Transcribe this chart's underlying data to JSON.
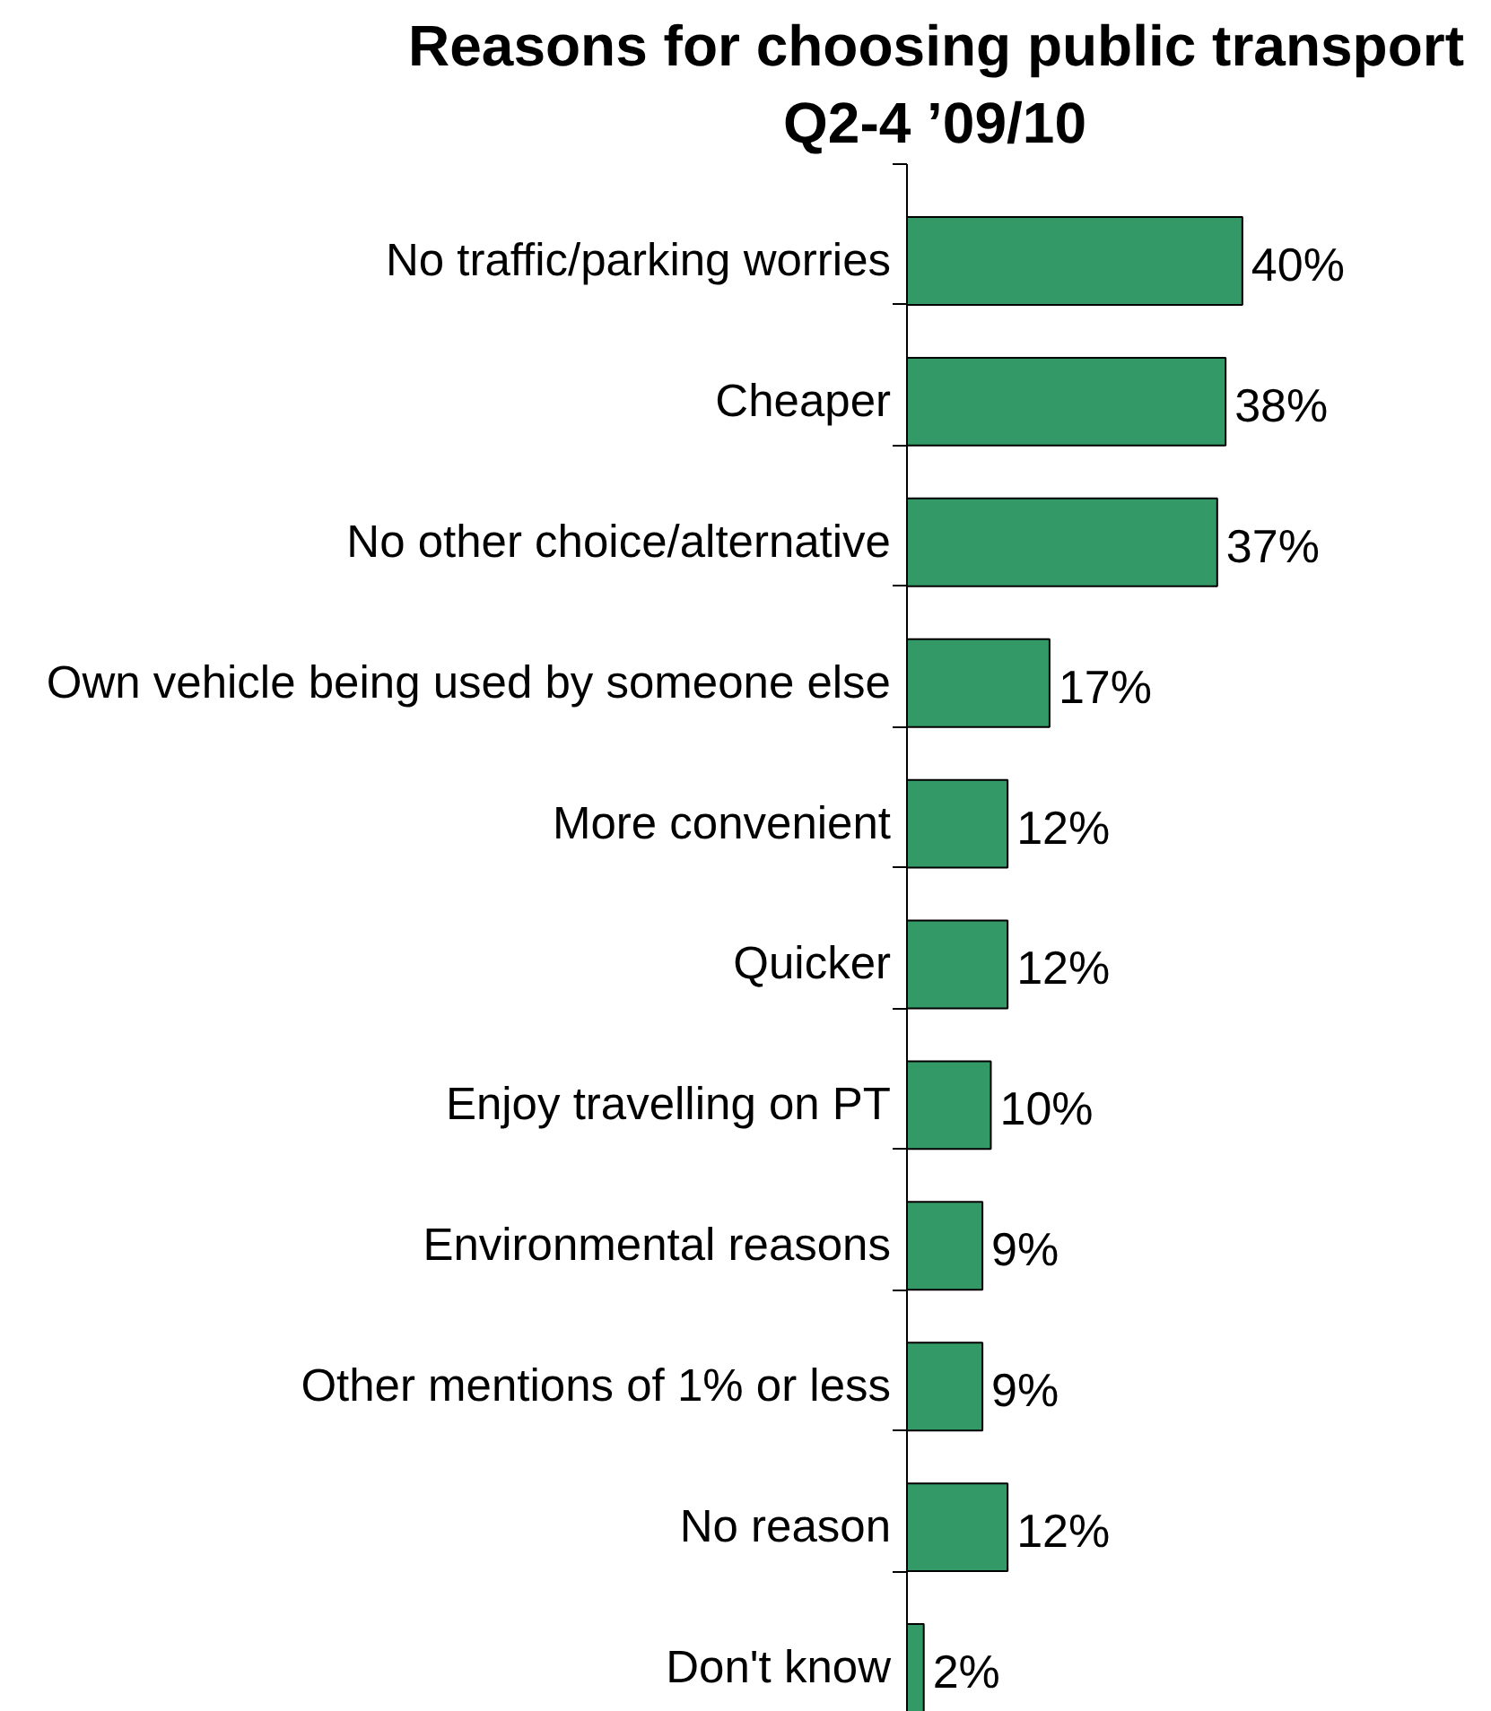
{
  "chart_data": {
    "type": "bar",
    "orientation": "horizontal",
    "title": "Reasons for choosing public transport",
    "subtitle": "Q2-4 ’09/10",
    "categories": [
      "No traffic/parking worries",
      "Cheaper",
      "No other choice/alternative",
      "Own vehicle being used by someone else",
      "More convenient",
      "Quicker",
      "Enjoy travelling on PT",
      "Environmental reasons",
      "Other mentions of 1% or less",
      "No reason",
      "Don't know"
    ],
    "values": [
      40,
      38,
      37,
      17,
      12,
      12,
      10,
      9,
      9,
      12,
      2
    ],
    "value_labels": [
      "40%",
      "38%",
      "37%",
      "17%",
      "12%",
      "12%",
      "10%",
      "9%",
      "9%",
      "12%",
      "2%"
    ],
    "color": "#339966",
    "tick_labels": "y"
  }
}
